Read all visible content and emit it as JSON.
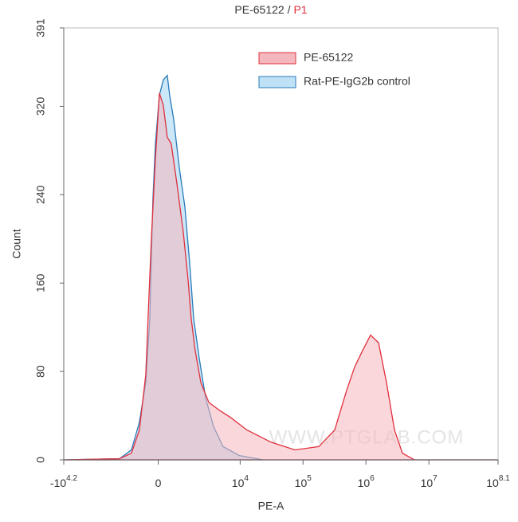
{
  "chart_data": {
    "type": "area",
    "title": "PE-65122 /",
    "title_gate": "P1",
    "xlabel": "PE-A",
    "ylabel": "Count",
    "watermark": "WWW.PTGLAB.COM",
    "xscale": "biexponential",
    "xlim": [
      -15849,
      125892541
    ],
    "ylim": [
      0,
      391
    ],
    "xticks": [
      {
        "value": -15849,
        "label": "-10",
        "exponent": "4.2"
      },
      0,
      {
        "value": 10000,
        "label": "10",
        "exponent": "4"
      },
      {
        "value": 100000,
        "label": "10",
        "exponent": "5"
      },
      {
        "value": 1000000,
        "label": "10",
        "exponent": "6"
      },
      {
        "value": 10000000,
        "label": "10",
        "exponent": "7"
      },
      {
        "value": 125892541,
        "label": "10",
        "exponent": "8.1"
      }
    ],
    "yticks": [
      0,
      80,
      160,
      240,
      320,
      391
    ],
    "legend": "top-right",
    "series": [
      {
        "name": "Rat-PE-IgG2b control",
        "color": "#2a7ab8",
        "fill": "#bfe1f6",
        "x": [
          -15800,
          -1943,
          -1145,
          -745,
          -471,
          -314,
          -194,
          -105,
          41,
          187,
          338,
          432,
          597,
          848,
          1136,
          1419,
          1689,
          2127,
          2741,
          3718,
          5320,
          9610,
          23100,
          125000000
        ],
        "values": [
          0,
          1,
          9,
          34,
          70,
          128,
          236,
          286,
          330,
          344,
          348,
          330,
          308,
          265,
          229,
          178,
          128,
          92,
          56,
          30,
          12,
          4,
          0,
          0
        ]
      },
      {
        "name": "PE-65122",
        "color": "#e0303c",
        "fill": "#f4b7be",
        "x": [
          -15800,
          -1943,
          -1145,
          -745,
          -471,
          -254,
          -105,
          41,
          187,
          338,
          496,
          737,
          1050,
          1321,
          1522,
          1805,
          2269,
          3098,
          4587,
          7160,
          12860,
          30900,
          74200,
          178000,
          319000,
          494000,
          661000,
          885000,
          1185000,
          1587000,
          2125000,
          2843000,
          3807000,
          5895000,
          125000000
        ],
        "values": [
          0,
          1,
          6,
          27,
          77,
          200,
          272,
          332,
          321,
          292,
          286,
          250,
          206,
          163,
          128,
          99,
          70,
          52,
          45,
          38,
          27,
          16,
          9,
          12,
          27,
          63,
          84,
          99,
          113,
          106,
          70,
          27,
          6,
          0,
          0
        ]
      }
    ]
  }
}
